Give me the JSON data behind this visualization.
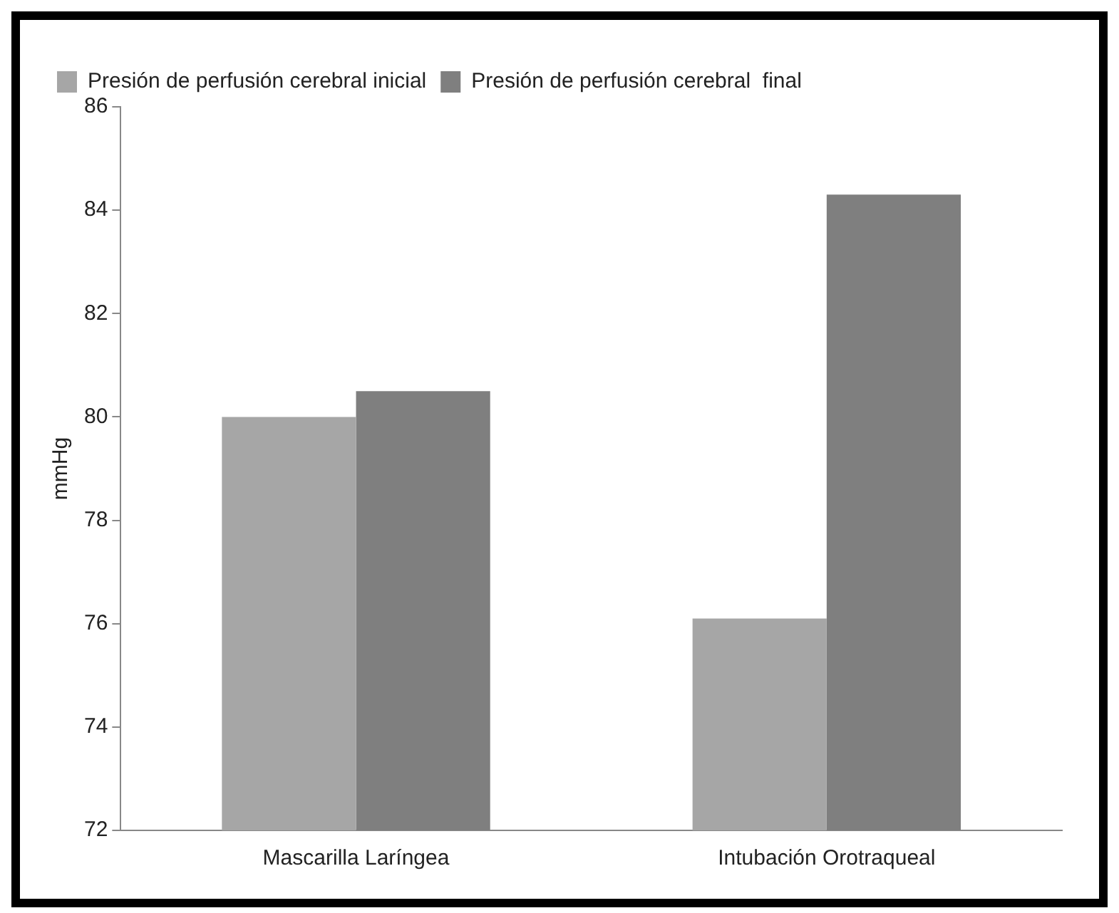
{
  "chart_data": {
    "type": "bar",
    "ylabel": "mmHg",
    "categories": [
      "Mascarilla Laríngea",
      "Intubación Orotraqueal"
    ],
    "series": [
      {
        "name": "Presión de perfusión cerebral inicial",
        "color": "#a6a6a6",
        "values": [
          80.0,
          76.1
        ]
      },
      {
        "name": "Presión de perfusión cerebral  final",
        "color": "#7f7f7f",
        "values": [
          80.5,
          84.3
        ]
      }
    ],
    "ylim": [
      72,
      86
    ],
    "yticks": [
      72,
      74,
      76,
      78,
      80,
      82,
      84,
      86
    ],
    "grid": false,
    "legend": "top left"
  }
}
